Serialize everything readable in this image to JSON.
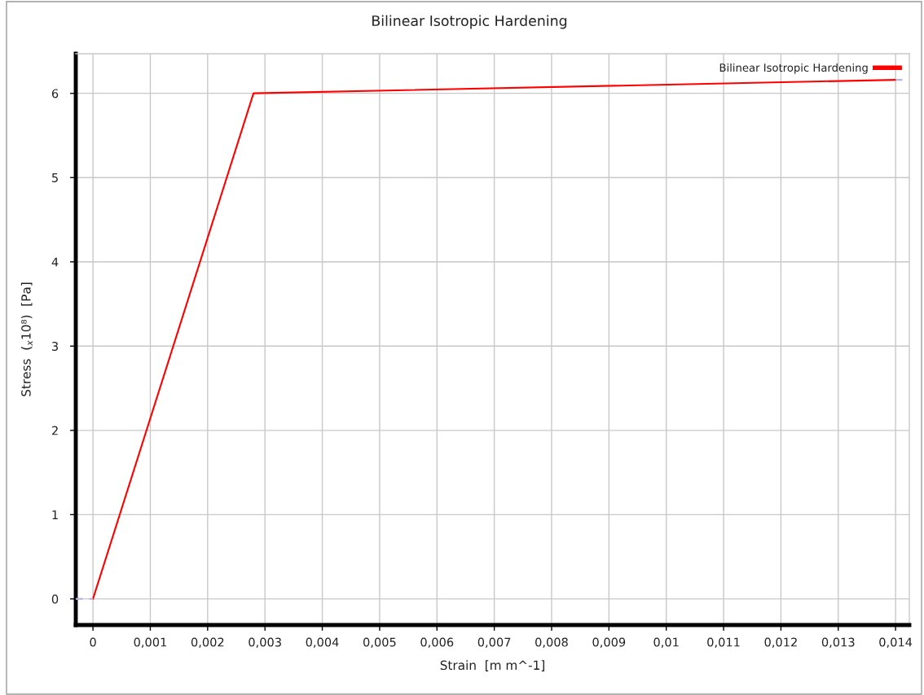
{
  "chart_data": {
    "type": "line",
    "title": "Bilinear Isotropic Hardening",
    "xlabel": "Strain  [m m^-1]",
    "ylabel": "Stress  ($_{x}$10⁸)  [Pa]",
    "xlim": [
      -0.0003,
      0.01424
    ],
    "ylim": [
      -0.31,
      6.47
    ],
    "xticks": [
      0,
      {
        "value": 0.001,
        "label": "0,001"
      },
      {
        "value": 0.002,
        "label": "0,002"
      },
      {
        "value": 0.003,
        "label": "0,003"
      },
      {
        "value": 0.004,
        "label": "0,004"
      },
      {
        "value": 0.005,
        "label": "0,005"
      },
      {
        "value": 0.006,
        "label": "0,006"
      },
      {
        "value": 0.007,
        "label": "0,007"
      },
      {
        "value": 0.008,
        "label": "0,008"
      },
      {
        "value": 0.009,
        "label": "0,009"
      },
      {
        "value": 0.01,
        "label": "0,01"
      },
      {
        "value": 0.011,
        "label": "0,011"
      },
      {
        "value": 0.012,
        "label": "0,012"
      },
      {
        "value": 0.013,
        "label": "0,013"
      },
      {
        "value": 0.014,
        "label": "0,014"
      }
    ],
    "yticks": [
      0,
      1,
      2,
      3,
      4,
      5,
      6
    ],
    "grid": true,
    "legend": "top right",
    "marker": "none",
    "series": [
      {
        "name": "Bilinear Isotropic Hardening",
        "color": "#ff0000",
        "x": [
          0,
          0.0028,
          0.014
        ],
        "values": [
          0,
          6,
          6.16
        ],
        "line_style": "solid"
      },
      {
        "color": "#b4b4f0",
        "x": [
          -0.0003,
          0
        ],
        "values": [
          0,
          0
        ],
        "line_style": "dashed"
      },
      {
        "color": "#b4b4f0",
        "x": [
          0.014,
          0.01424
        ],
        "values": [
          6.16,
          6.16
        ],
        "line_style": "dashed"
      }
    ]
  }
}
